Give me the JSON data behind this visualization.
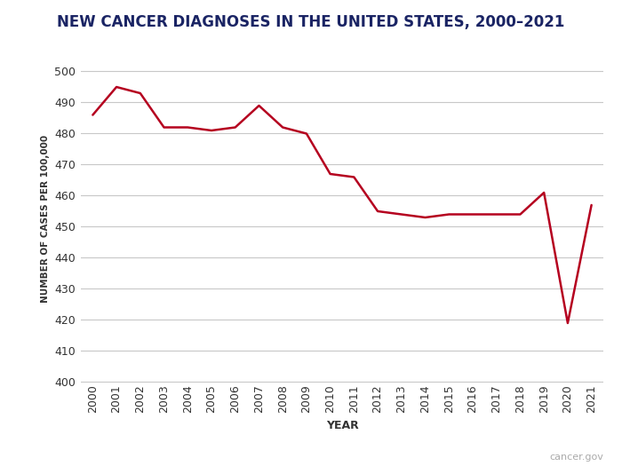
{
  "years": [
    2000,
    2001,
    2002,
    2003,
    2004,
    2005,
    2006,
    2007,
    2008,
    2009,
    2010,
    2011,
    2012,
    2013,
    2014,
    2015,
    2016,
    2017,
    2018,
    2019,
    2020,
    2021
  ],
  "values": [
    486,
    495,
    493,
    482,
    482,
    481,
    482,
    489,
    482,
    480,
    467,
    466,
    455,
    454,
    453,
    454,
    454,
    454,
    454,
    461,
    419,
    457
  ],
  "title": "NEW CANCER DIAGNOSES IN THE UNITED STATES, 2000–2021",
  "xlabel": "YEAR",
  "ylabel": "NUMBER OF CASES PER 100,000",
  "ylim": [
    400,
    505
  ],
  "yticks": [
    400,
    410,
    420,
    430,
    440,
    450,
    460,
    470,
    480,
    490,
    500
  ],
  "line_color": "#b5001f",
  "line_width": 1.8,
  "background_color": "#ffffff",
  "grid_color": "#c8c8c8",
  "title_color": "#1a2464",
  "axis_label_color": "#333333",
  "tick_label_color": "#333333",
  "watermark": "cancer.gov",
  "watermark_color": "#aaaaaa"
}
